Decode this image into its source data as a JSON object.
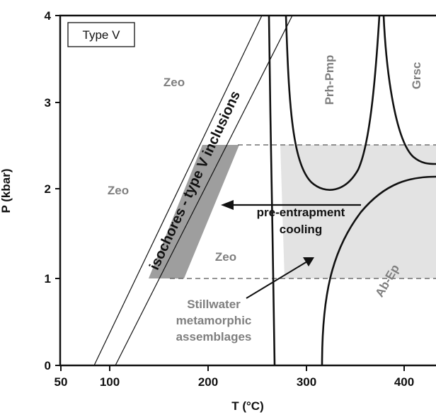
{
  "axes": {
    "xlabel": "T (°C)",
    "ylabel": "P (kbar)",
    "xticks": [
      "50",
      "100",
      "200",
      "300",
      "400"
    ],
    "yticks": [
      "0",
      "1",
      "2",
      "3",
      "4"
    ]
  },
  "legend": {
    "label": "Type V"
  },
  "fields": {
    "zeo_top": "Zeo",
    "zeo_mid": "Zeo",
    "zeo_low": "Zeo",
    "prh_pmp": "Prh-Pmp",
    "grsc": "Grsc",
    "ab_ep": "Ab-Ep"
  },
  "annotations": {
    "isochores": "isochores - type V inclusions",
    "cooling_line1": "pre-entrapment",
    "cooling_line2": "cooling",
    "stillwater_line1": "Stillwater",
    "stillwater_line2": "metamorphic",
    "stillwater_line3": "assemblages"
  },
  "colors": {
    "shade": "#e3e3e3",
    "isochore_band": "#999999",
    "grey_text": "#7f7f7f",
    "line": "#111111"
  }
}
